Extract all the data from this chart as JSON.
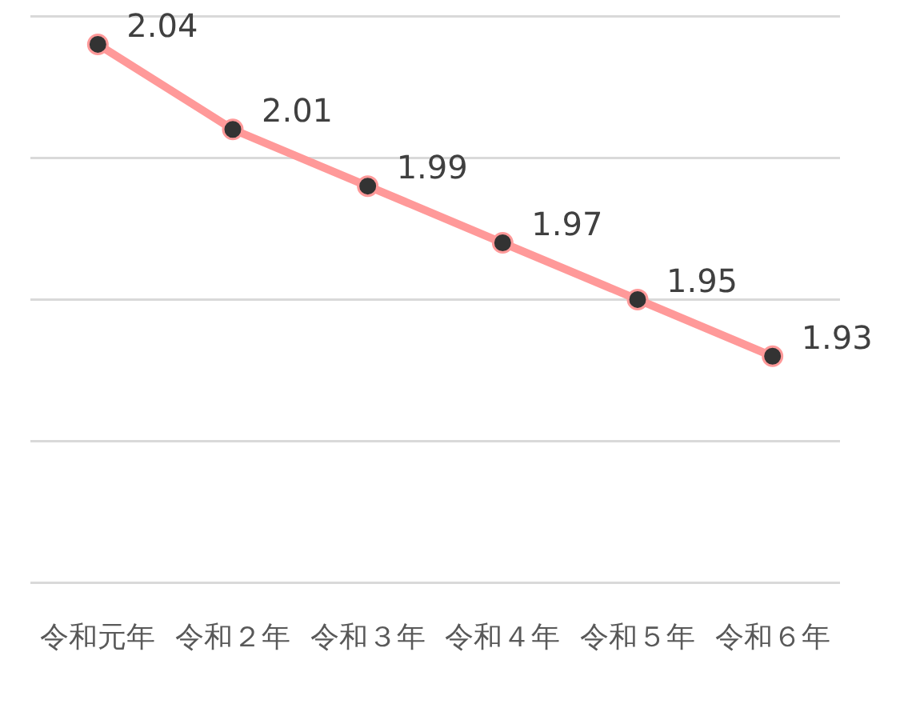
{
  "chart_data": {
    "type": "line",
    "categories": [
      "令和元年",
      "令和２年",
      "令和３年",
      "令和４年",
      "令和５年",
      "令和６年"
    ],
    "series": [
      {
        "color": "#ff9999",
        "values": [
          2.04,
          2.01,
          1.99,
          1.97,
          1.95,
          1.93
        ]
      }
    ],
    "ylim": [
      1.85,
      2.05
    ],
    "yticks": [
      {
        "value": 1.85,
        "label": null
      },
      {
        "value": 1.9,
        "label": null
      },
      {
        "value": 1.95,
        "label": null
      },
      {
        "value": 2.0,
        "label": null
      },
      {
        "value": 2.05,
        "label": null
      }
    ],
    "grid": "y",
    "tick_labels": "x",
    "marker": "circle",
    "line_style": "solid",
    "data_labels": true,
    "legend": false
  }
}
